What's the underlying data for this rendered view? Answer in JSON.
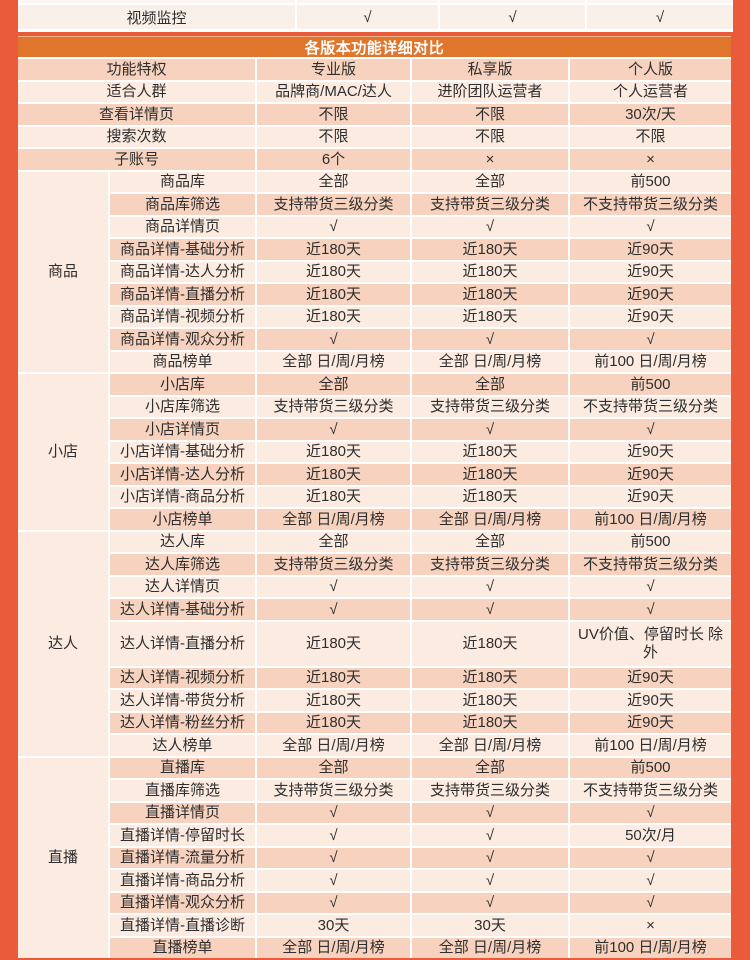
{
  "colors": {
    "page_bg": "#EA5B3B",
    "banner_bg": "#E0752C",
    "row_dark": "#F7D3BF",
    "row_light": "#FCEBE1",
    "top_row_bg": "#F9F0E9",
    "top_sliver_bg": "#FCF5F1",
    "grid_line": "#FFFFFF",
    "text": "#2E2E2E",
    "banner_text": "#FFFFFF"
  },
  "top_table": {
    "feature_label": "视频监控",
    "values": [
      "√",
      "√",
      "√"
    ]
  },
  "banner": {
    "title": "各版本功能详细对比"
  },
  "comparison": {
    "groups": [
      {
        "name": "商品",
        "start": 5,
        "span": 9
      },
      {
        "name": "小店",
        "start": 14,
        "span": 7
      },
      {
        "name": "达人",
        "start": 21,
        "span": 9
      },
      {
        "name": "直播",
        "start": 30,
        "span": 9
      }
    ],
    "rows": [
      {
        "label": "功能特权",
        "values": [
          "专业版",
          "私享版",
          "个人版"
        ],
        "header": true
      },
      {
        "label": "适合人群",
        "values": [
          "品牌商/MAC/达人",
          "进阶团队运营者",
          "个人运营者"
        ]
      },
      {
        "label": "查看详情页",
        "values": [
          "不限",
          "不限",
          "30次/天"
        ]
      },
      {
        "label": "搜索次数",
        "values": [
          "不限",
          "不限",
          "不限"
        ]
      },
      {
        "label": "子账号",
        "values": [
          "6个",
          "×",
          "×"
        ]
      },
      {
        "label": "商品库",
        "values": [
          "全部",
          "全部",
          "前500"
        ]
      },
      {
        "label": "商品库筛选",
        "values": [
          "支持带货三级分类",
          "支持带货三级分类",
          "不支持带货三级分类"
        ]
      },
      {
        "label": "商品详情页",
        "values": [
          "√",
          "√",
          "√"
        ]
      },
      {
        "label": "商品详情-基础分析",
        "values": [
          "近180天",
          "近180天",
          "近90天"
        ]
      },
      {
        "label": "商品详情-达人分析",
        "values": [
          "近180天",
          "近180天",
          "近90天"
        ]
      },
      {
        "label": "商品详情-直播分析",
        "values": [
          "近180天",
          "近180天",
          "近90天"
        ]
      },
      {
        "label": "商品详情-视频分析",
        "values": [
          "近180天",
          "近180天",
          "近90天"
        ]
      },
      {
        "label": "商品详情-观众分析",
        "values": [
          "√",
          "√",
          "√"
        ]
      },
      {
        "label": "商品榜单",
        "values": [
          "全部 日/周/月榜",
          "全部 日/周/月榜",
          "前100 日/周/月榜"
        ]
      },
      {
        "label": "小店库",
        "values": [
          "全部",
          "全部",
          "前500"
        ]
      },
      {
        "label": "小店库筛选",
        "values": [
          "支持带货三级分类",
          "支持带货三级分类",
          "不支持带货三级分类"
        ]
      },
      {
        "label": "小店详情页",
        "values": [
          "√",
          "√",
          "√"
        ]
      },
      {
        "label": "小店详情-基础分析",
        "values": [
          "近180天",
          "近180天",
          "近90天"
        ]
      },
      {
        "label": "小店详情-达人分析",
        "values": [
          "近180天",
          "近180天",
          "近90天"
        ]
      },
      {
        "label": "小店详情-商品分析",
        "values": [
          "近180天",
          "近180天",
          "近90天"
        ]
      },
      {
        "label": "小店榜单",
        "values": [
          "全部 日/周/月榜",
          "全部 日/周/月榜",
          "前100 日/周/月榜"
        ]
      },
      {
        "label": "达人库",
        "values": [
          "全部",
          "全部",
          "前500"
        ]
      },
      {
        "label": "达人库筛选",
        "values": [
          "支持带货三级分类",
          "支持带货三级分类",
          "不支持带货三级分类"
        ]
      },
      {
        "label": "达人详情页",
        "values": [
          "√",
          "√",
          "√"
        ]
      },
      {
        "label": "达人详情-基础分析",
        "values": [
          "√",
          "√",
          "√"
        ]
      },
      {
        "label": "达人详情-直播分析",
        "values": [
          "近180天",
          "近180天",
          "UV价值、停留时长 除外"
        ],
        "tall": true
      },
      {
        "label": "达人详情-视频分析",
        "values": [
          "近180天",
          "近180天",
          "近90天"
        ]
      },
      {
        "label": "达人详情-带货分析",
        "values": [
          "近180天",
          "近180天",
          "近90天"
        ]
      },
      {
        "label": "达人详情-粉丝分析",
        "values": [
          "近180天",
          "近180天",
          "近90天"
        ]
      },
      {
        "label": "达人榜单",
        "values": [
          "全部 日/周/月榜",
          "全部 日/周/月榜",
          "前100 日/周/月榜"
        ]
      },
      {
        "label": "直播库",
        "values": [
          "全部",
          "全部",
          "前500"
        ]
      },
      {
        "label": "直播库筛选",
        "values": [
          "支持带货三级分类",
          "支持带货三级分类",
          "不支持带货三级分类"
        ]
      },
      {
        "label": "直播详情页",
        "values": [
          "√",
          "√",
          "√"
        ]
      },
      {
        "label": "直播详情-停留时长",
        "values": [
          "√",
          "√",
          "50次/月"
        ]
      },
      {
        "label": "直播详情-流量分析",
        "values": [
          "√",
          "√",
          "√"
        ]
      },
      {
        "label": "直播详情-商品分析",
        "values": [
          "√",
          "√",
          "√"
        ]
      },
      {
        "label": "直播详情-观众分析",
        "values": [
          "√",
          "√",
          "√"
        ]
      },
      {
        "label": "直播详情-直播诊断",
        "values": [
          "30天",
          "30天",
          "×"
        ]
      },
      {
        "label": "直播榜单",
        "values": [
          "全部 日/周/月榜",
          "全部 日/周/月榜",
          "前100 日/周/月榜"
        ]
      }
    ]
  }
}
